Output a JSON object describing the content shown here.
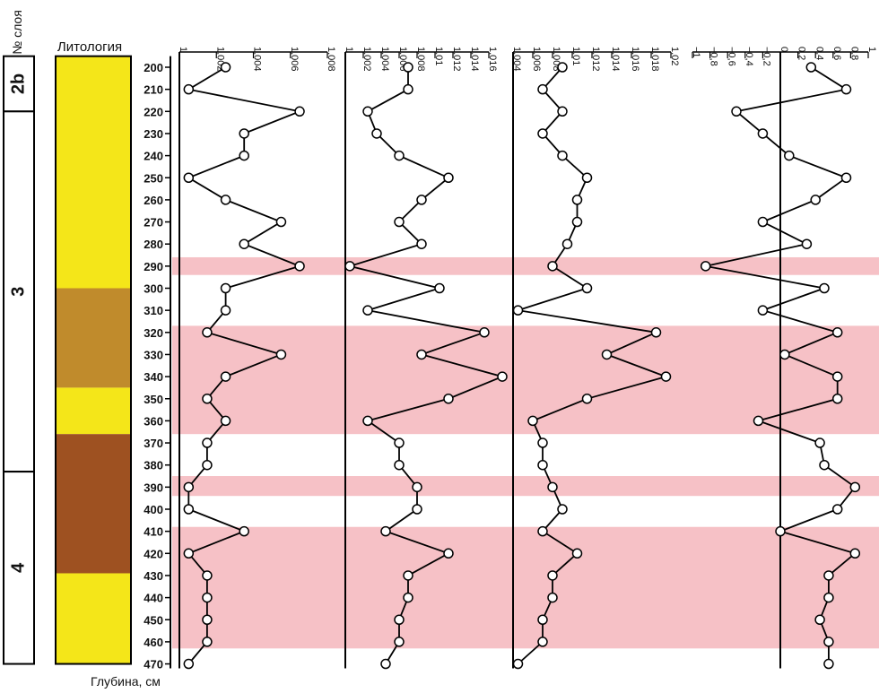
{
  "labels": {
    "layer_header": "№ слоя",
    "lithology_header": "Литология",
    "depth_label": "Глубина, см"
  },
  "layers": [
    {
      "name": "2b",
      "from": 195,
      "to": 220
    },
    {
      "name": "3",
      "from": 220,
      "to": 383
    },
    {
      "name": "4",
      "from": 383,
      "to": 470
    }
  ],
  "lithology": [
    {
      "from": 195,
      "to": 300,
      "color": "#f4e619"
    },
    {
      "from": 300,
      "to": 345,
      "color": "#c08b2c"
    },
    {
      "from": 345,
      "to": 366,
      "color": "#f4e619"
    },
    {
      "from": 366,
      "to": 429,
      "color": "#9e5121"
    },
    {
      "from": 429,
      "to": 470,
      "color": "#f4e619"
    }
  ],
  "highlight_color": "#f6c1c6",
  "highlight_bands": [
    {
      "from": 286,
      "to": 294
    },
    {
      "from": 317,
      "to": 366
    },
    {
      "from": 385,
      "to": 394
    },
    {
      "from": 408,
      "to": 463
    }
  ],
  "chart_data": {
    "type": "line",
    "orientation": "depth-down",
    "depth": [
      200,
      210,
      220,
      230,
      240,
      250,
      260,
      270,
      280,
      290,
      300,
      310,
      320,
      330,
      340,
      350,
      360,
      370,
      380,
      390,
      400,
      410,
      420,
      430,
      440,
      450,
      460,
      470
    ],
    "depth_ticks": [
      200,
      210,
      220,
      230,
      240,
      250,
      260,
      270,
      280,
      290,
      300,
      310,
      320,
      330,
      340,
      350,
      360,
      370,
      380,
      390,
      400,
      410,
      420,
      430,
      440,
      450,
      460,
      470
    ],
    "series": [
      {
        "xlim": [
          1,
          1.008
        ],
        "ticks": [
          1,
          1.002,
          1.004,
          1.006,
          1.008
        ],
        "tick_labels": [
          "1",
          "1,002",
          "1,004",
          "1,006",
          "1,008"
        ],
        "values": [
          1.0025,
          1.0005,
          1.0065,
          1.0035,
          1.0035,
          1.0005,
          1.0025,
          1.0055,
          1.0035,
          1.0065,
          1.0025,
          1.0025,
          1.0015,
          1.0055,
          1.0025,
          1.0015,
          1.0025,
          1.0015,
          1.0015,
          1.0005,
          1.0005,
          1.0035,
          1.0005,
          1.0015,
          1.0015,
          1.0015,
          1.0015,
          1.0005
        ]
      },
      {
        "xlim": [
          1,
          1.016
        ],
        "ticks": [
          1,
          1.002,
          1.004,
          1.006,
          1.008,
          1.01,
          1.012,
          1.014,
          1.016
        ],
        "tick_labels": [
          "1",
          "1,002",
          "1,004",
          "1,006",
          "1,008",
          "1,01",
          "1,012",
          "1,014",
          "1,016"
        ],
        "values": [
          1.007,
          1.007,
          1.0025,
          1.0035,
          1.006,
          1.0115,
          1.0085,
          1.006,
          1.0085,
          1.0005,
          1.0105,
          1.0025,
          1.0155,
          1.0085,
          1.0175,
          1.0115,
          1.0025,
          1.006,
          1.006,
          1.008,
          1.008,
          1.0045,
          1.0115,
          1.007,
          1.007,
          1.006,
          1.006,
          1.0045
        ]
      },
      {
        "xlim": [
          1.004,
          1.02
        ],
        "ticks": [
          1.004,
          1.006,
          1.008,
          1.01,
          1.012,
          1.014,
          1.016,
          1.018,
          1.02
        ],
        "tick_labels": [
          "1,004",
          "1,006",
          "1,008",
          "1,01",
          "1,012",
          "1,014",
          "1,016",
          "1,018",
          "1,02"
        ],
        "values": [
          1.009,
          1.007,
          1.009,
          1.007,
          1.009,
          1.0115,
          1.0105,
          1.0105,
          1.0095,
          1.008,
          1.0115,
          1.0045,
          1.0185,
          1.0135,
          1.0195,
          1.0115,
          1.006,
          1.007,
          1.007,
          1.008,
          1.009,
          1.007,
          1.0105,
          1.008,
          1.008,
          1.007,
          1.007,
          1.0045
        ]
      },
      {
        "xlim": [
          -1,
          1
        ],
        "ticks": [
          -1,
          -0.8,
          -0.6,
          -0.4,
          -0.2,
          0,
          0.2,
          0.4,
          0.6,
          0.8,
          1
        ],
        "tick_labels": [
          "−1",
          "−0,8",
          "−0,6",
          "−0,4",
          "−0,2",
          "0",
          "0,2",
          "0,4",
          "0,6",
          "0,8",
          "1"
        ],
        "zero_line": 0,
        "values": [
          0.35,
          0.75,
          -0.5,
          -0.2,
          0.1,
          0.75,
          0.4,
          -0.2,
          0.3,
          -0.85,
          0.5,
          -0.2,
          0.65,
          0.05,
          0.65,
          0.65,
          -0.25,
          0.45,
          0.5,
          0.85,
          0.65,
          0,
          0.85,
          0.55,
          0.55,
          0.45,
          0.55,
          0.55
        ]
      }
    ]
  }
}
